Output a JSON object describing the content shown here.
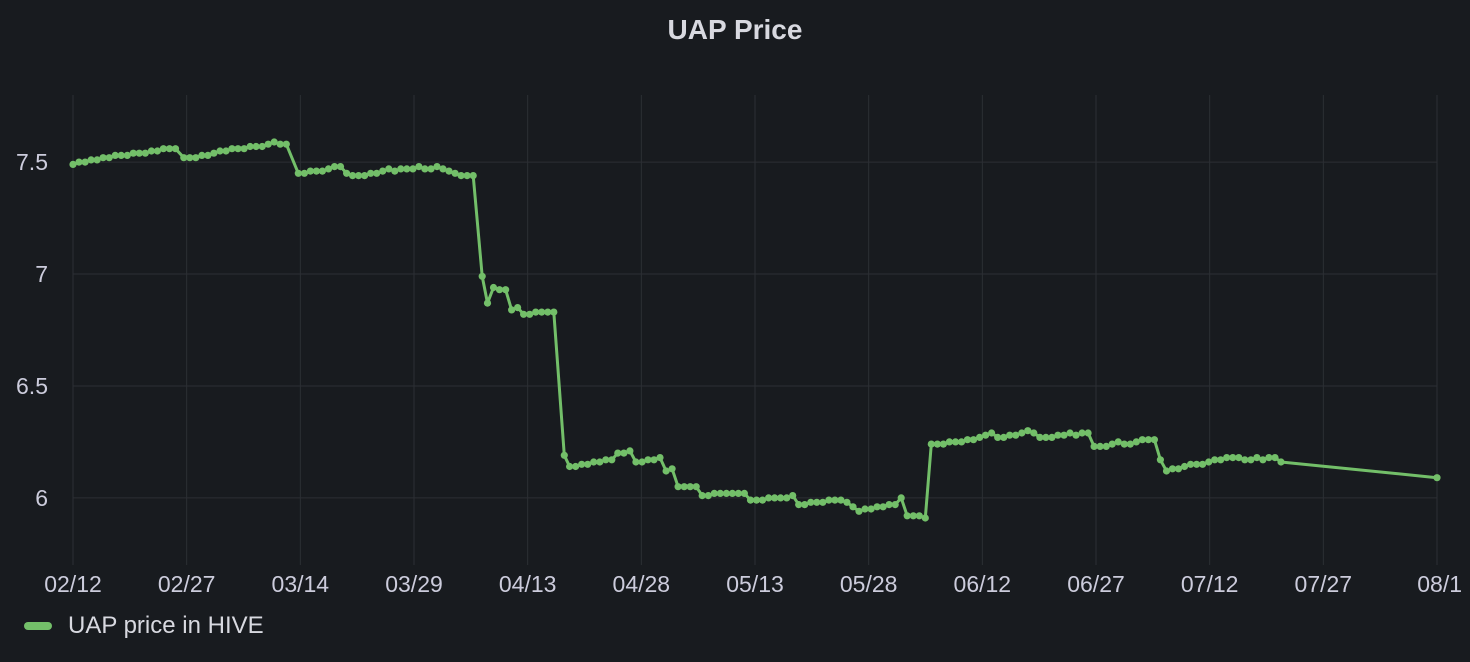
{
  "panel": {
    "title": "UAP Price"
  },
  "legend": {
    "label": "UAP price in HIVE",
    "color": "#73bf69"
  },
  "chart_data": {
    "type": "line",
    "title": "UAP Price",
    "xlabel": "",
    "ylabel": "",
    "x_ticks": [
      "02/12",
      "02/27",
      "03/14",
      "03/29",
      "04/13",
      "04/28",
      "05/13",
      "05/28",
      "06/12",
      "06/27",
      "07/12",
      "07/27",
      "08/1"
    ],
    "y_ticks": [
      6,
      6.5,
      7,
      7.5
    ],
    "xlim_days": [
      0,
      181
    ],
    "ylim": [
      5.7,
      7.8
    ],
    "grid": true,
    "legend_position": "bottom-left",
    "series": [
      {
        "name": "UAP price in HIVE",
        "color": "#73bf69",
        "points": [
          [
            0,
            7.49
          ],
          [
            0.8,
            7.5
          ],
          [
            1.6,
            7.5
          ],
          [
            2.4,
            7.51
          ],
          [
            3.2,
            7.51
          ],
          [
            4,
            7.52
          ],
          [
            4.8,
            7.52
          ],
          [
            5.6,
            7.53
          ],
          [
            6.4,
            7.53
          ],
          [
            7.2,
            7.53
          ],
          [
            8,
            7.54
          ],
          [
            8.8,
            7.54
          ],
          [
            9.6,
            7.54
          ],
          [
            10.4,
            7.55
          ],
          [
            11.2,
            7.55
          ],
          [
            12,
            7.56
          ],
          [
            12.8,
            7.56
          ],
          [
            13.6,
            7.56
          ],
          [
            14.7,
            7.52
          ],
          [
            15.5,
            7.52
          ],
          [
            16.3,
            7.52
          ],
          [
            17.1,
            7.53
          ],
          [
            17.9,
            7.53
          ],
          [
            18.7,
            7.54
          ],
          [
            19.5,
            7.55
          ],
          [
            20.3,
            7.55
          ],
          [
            21.1,
            7.56
          ],
          [
            21.9,
            7.56
          ],
          [
            22.7,
            7.56
          ],
          [
            23.5,
            7.57
          ],
          [
            24.3,
            7.57
          ],
          [
            25.1,
            7.57
          ],
          [
            25.9,
            7.58
          ],
          [
            26.7,
            7.59
          ],
          [
            27.5,
            7.58
          ],
          [
            28.3,
            7.58
          ],
          [
            29.9,
            7.45
          ],
          [
            30.7,
            7.45
          ],
          [
            31.5,
            7.46
          ],
          [
            32.3,
            7.46
          ],
          [
            33.1,
            7.46
          ],
          [
            33.9,
            7.47
          ],
          [
            34.7,
            7.48
          ],
          [
            35.5,
            7.48
          ],
          [
            36.3,
            7.45
          ],
          [
            37.1,
            7.44
          ],
          [
            37.9,
            7.44
          ],
          [
            38.7,
            7.44
          ],
          [
            39.5,
            7.45
          ],
          [
            40.3,
            7.45
          ],
          [
            41.1,
            7.46
          ],
          [
            41.9,
            7.47
          ],
          [
            42.7,
            7.46
          ],
          [
            43.5,
            7.47
          ],
          [
            44.3,
            7.47
          ],
          [
            45.1,
            7.47
          ],
          [
            45.9,
            7.48
          ],
          [
            46.7,
            7.47
          ],
          [
            47.5,
            7.47
          ],
          [
            48.3,
            7.48
          ],
          [
            49.1,
            7.47
          ],
          [
            49.9,
            7.46
          ],
          [
            50.7,
            7.45
          ],
          [
            51.5,
            7.44
          ],
          [
            52.3,
            7.44
          ],
          [
            53.1,
            7.44
          ],
          [
            54.3,
            6.99
          ],
          [
            55,
            6.87
          ],
          [
            55.8,
            6.94
          ],
          [
            56.6,
            6.93
          ],
          [
            57.4,
            6.93
          ],
          [
            58.2,
            6.84
          ],
          [
            59,
            6.85
          ],
          [
            59.8,
            6.82
          ],
          [
            60.6,
            6.82
          ],
          [
            61.4,
            6.83
          ],
          [
            62.2,
            6.83
          ],
          [
            63,
            6.83
          ],
          [
            63.8,
            6.83
          ],
          [
            65.2,
            6.19
          ],
          [
            65.9,
            6.14
          ],
          [
            66.7,
            6.14
          ],
          [
            67.5,
            6.15
          ],
          [
            68.3,
            6.15
          ],
          [
            69.1,
            6.16
          ],
          [
            69.9,
            6.16
          ],
          [
            70.7,
            6.17
          ],
          [
            71.5,
            6.17
          ],
          [
            72.3,
            6.2
          ],
          [
            73.1,
            6.2
          ],
          [
            73.9,
            6.21
          ],
          [
            74.7,
            6.16
          ],
          [
            75.5,
            6.16
          ],
          [
            76.3,
            6.17
          ],
          [
            77.1,
            6.17
          ],
          [
            77.9,
            6.18
          ],
          [
            78.7,
            6.12
          ],
          [
            79.5,
            6.13
          ],
          [
            80.3,
            6.05
          ],
          [
            81.1,
            6.05
          ],
          [
            81.9,
            6.05
          ],
          [
            82.7,
            6.05
          ],
          [
            83.5,
            6.01
          ],
          [
            84.3,
            6.01
          ],
          [
            85.1,
            6.02
          ],
          [
            85.9,
            6.02
          ],
          [
            86.7,
            6.02
          ],
          [
            87.5,
            6.02
          ],
          [
            88.3,
            6.02
          ],
          [
            89.1,
            6.02
          ],
          [
            89.9,
            5.99
          ],
          [
            90.7,
            5.99
          ],
          [
            91.5,
            5.99
          ],
          [
            92.3,
            6
          ],
          [
            93.1,
            6
          ],
          [
            93.9,
            6
          ],
          [
            94.7,
            6
          ],
          [
            95.5,
            6.01
          ],
          [
            96.3,
            5.97
          ],
          [
            97.1,
            5.97
          ],
          [
            97.9,
            5.98
          ],
          [
            98.7,
            5.98
          ],
          [
            99.5,
            5.98
          ],
          [
            100.3,
            5.99
          ],
          [
            101.1,
            5.99
          ],
          [
            101.9,
            5.99
          ],
          [
            102.7,
            5.98
          ],
          [
            103.5,
            5.96
          ],
          [
            104.3,
            5.94
          ],
          [
            105.1,
            5.95
          ],
          [
            105.9,
            5.95
          ],
          [
            106.7,
            5.96
          ],
          [
            107.5,
            5.96
          ],
          [
            108.3,
            5.97
          ],
          [
            109.1,
            5.97
          ],
          [
            109.9,
            6
          ],
          [
            110.7,
            5.92
          ],
          [
            111.5,
            5.92
          ],
          [
            112.3,
            5.92
          ],
          [
            113.1,
            5.91
          ],
          [
            113.9,
            6.24
          ],
          [
            114.7,
            6.24
          ],
          [
            115.5,
            6.24
          ],
          [
            116.3,
            6.25
          ],
          [
            117.1,
            6.25
          ],
          [
            117.9,
            6.25
          ],
          [
            118.7,
            6.26
          ],
          [
            119.5,
            6.26
          ],
          [
            120.3,
            6.27
          ],
          [
            121.1,
            6.28
          ],
          [
            121.9,
            6.29
          ],
          [
            122.7,
            6.27
          ],
          [
            123.5,
            6.27
          ],
          [
            124.3,
            6.28
          ],
          [
            125.1,
            6.28
          ],
          [
            125.9,
            6.29
          ],
          [
            126.7,
            6.3
          ],
          [
            127.5,
            6.29
          ],
          [
            128.3,
            6.27
          ],
          [
            129.1,
            6.27
          ],
          [
            129.9,
            6.27
          ],
          [
            130.7,
            6.28
          ],
          [
            131.5,
            6.28
          ],
          [
            132.3,
            6.29
          ],
          [
            133.1,
            6.28
          ],
          [
            133.9,
            6.29
          ],
          [
            134.7,
            6.29
          ],
          [
            135.5,
            6.23
          ],
          [
            136.3,
            6.23
          ],
          [
            137.1,
            6.23
          ],
          [
            137.9,
            6.24
          ],
          [
            138.7,
            6.25
          ],
          [
            139.5,
            6.24
          ],
          [
            140.3,
            6.24
          ],
          [
            141.1,
            6.25
          ],
          [
            141.9,
            6.26
          ],
          [
            142.7,
            6.26
          ],
          [
            143.5,
            6.26
          ],
          [
            144.3,
            6.17
          ],
          [
            145.1,
            6.12
          ],
          [
            145.9,
            6.13
          ],
          [
            146.7,
            6.13
          ],
          [
            147.5,
            6.14
          ],
          [
            148.3,
            6.15
          ],
          [
            149.1,
            6.15
          ],
          [
            149.9,
            6.15
          ],
          [
            150.7,
            6.16
          ],
          [
            151.5,
            6.17
          ],
          [
            152.3,
            6.17
          ],
          [
            153.1,
            6.18
          ],
          [
            153.9,
            6.18
          ],
          [
            154.7,
            6.18
          ],
          [
            155.5,
            6.17
          ],
          [
            156.3,
            6.17
          ],
          [
            157.1,
            6.18
          ],
          [
            157.9,
            6.17
          ],
          [
            158.7,
            6.18
          ],
          [
            159.5,
            6.18
          ],
          [
            160.3,
            6.16
          ],
          [
            181,
            6.09
          ]
        ]
      }
    ]
  }
}
